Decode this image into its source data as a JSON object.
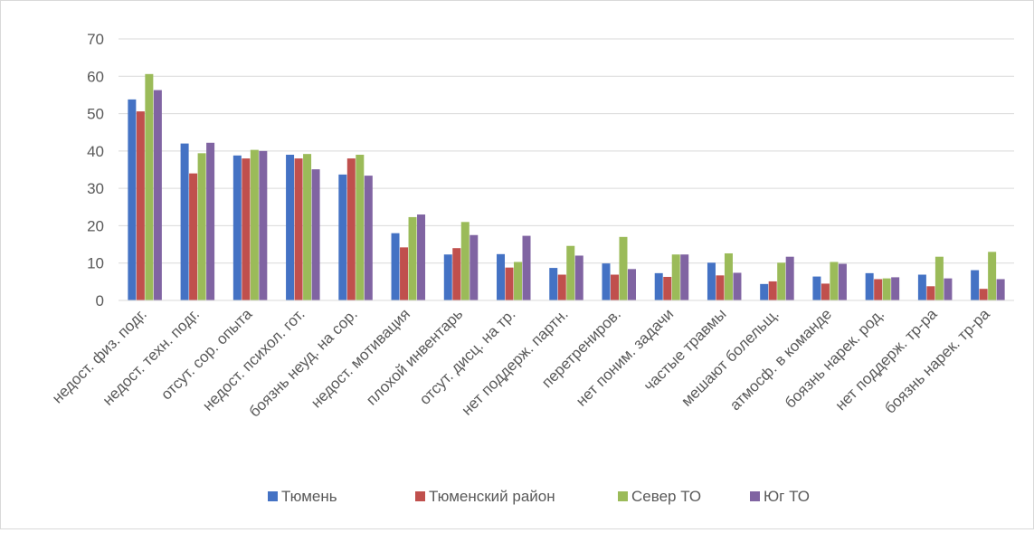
{
  "chart_data": {
    "type": "bar",
    "title": "",
    "xlabel": "",
    "ylabel": "",
    "ylim": [
      0,
      70
    ],
    "yticks": [
      0,
      10,
      20,
      30,
      40,
      50,
      60,
      70
    ],
    "grid": true,
    "legend_position": "bottom",
    "categories": [
      "недост. физ. подг.",
      "недост. техн. подг.",
      "отсут. сор. опыта",
      "недост. психол. гот.",
      "боязнь неуд. на сор.",
      "недост. мотивация",
      "плохой инвентарь",
      "отсут. дисц. на тр.",
      "нет поддерж. партн.",
      "перетрениров.",
      "нет поним. задачи",
      "частые травмы",
      "мешают болельщ.",
      "атмосф. в команде",
      "боязнь нарек. род.",
      "нет поддерж. тр-ра",
      "боязнь нарек. тр-ра"
    ],
    "series": [
      {
        "name": "Тюмень",
        "color": "#4472c4",
        "values": [
          53.8,
          42,
          38.8,
          39,
          33.7,
          18,
          12.3,
          12.4,
          8.7,
          9.9,
          7.3,
          10.1,
          4.4,
          6.4,
          7.3,
          6.9,
          8.1
        ]
      },
      {
        "name": "Тюменский район",
        "color": "#c0504d",
        "values": [
          50.6,
          34,
          38,
          38,
          38,
          14.2,
          14,
          8.8,
          6.9,
          6.9,
          6.3,
          6.7,
          5.1,
          4.5,
          5.7,
          3.8,
          3.1
        ]
      },
      {
        "name": "Север ТО",
        "color": "#9bbb59",
        "values": [
          60.6,
          39.4,
          40.3,
          39.2,
          39,
          22.3,
          21,
          10.3,
          14.6,
          17,
          12.3,
          12.6,
          10.1,
          10.3,
          5.9,
          11.7,
          13
        ]
      },
      {
        "name": "Юг ТО",
        "color": "#8064a2",
        "values": [
          56.3,
          42.2,
          40,
          35.1,
          33.4,
          23,
          17.5,
          17.3,
          12,
          8.4,
          12.3,
          7.4,
          11.7,
          9.8,
          6.2,
          5.9,
          5.7
        ]
      }
    ]
  }
}
